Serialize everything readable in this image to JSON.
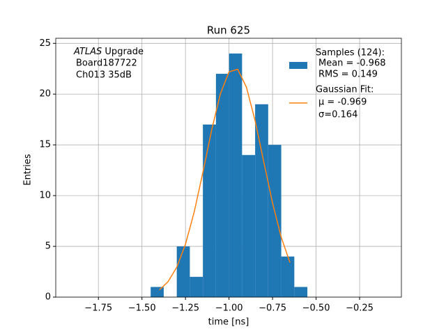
{
  "chart_data": {
    "type": "histogram",
    "title": "Run 625",
    "xlabel": "time [ns]",
    "ylabel": "Entries",
    "annotation": {
      "italic": "ATLAS",
      "text": "Upgrade",
      "lines": [
        "Board187722",
        "Ch013 35dB"
      ]
    },
    "bins": [
      -1.45,
      -1.375,
      -1.3,
      -1.225,
      -1.15,
      -1.075,
      -1.0,
      -0.925,
      -0.85,
      -0.775,
      -0.7,
      -0.625,
      -0.55
    ],
    "values": [
      1,
      0,
      5,
      2,
      17,
      22,
      24,
      14,
      19,
      15,
      4,
      1
    ],
    "color": "#1f77b4",
    "name": "Samples (124):",
    "details": [
      "Mean = -0.968",
      "RMS = 0.149"
    ],
    "fit": {
      "type": "line",
      "name": "Gaussian Fit:",
      "details": [
        "μ = -0.969",
        "σ=0.164"
      ],
      "color": "#ff7f0e",
      "x": [
        -1.4,
        -1.35,
        -1.3,
        -1.25,
        -1.2,
        -1.15,
        -1.1,
        -1.05,
        -1.0,
        -0.95,
        -0.9,
        -0.85,
        -0.8,
        -0.75,
        -0.7,
        -0.65
      ],
      "values": [
        0.71,
        1.52,
        2.95,
        5.21,
        8.38,
        12.29,
        16.43,
        20.0,
        22.19,
        22.45,
        20.68,
        17.37,
        13.29,
        9.27,
        5.89,
        3.41
      ]
    },
    "xlim": [
      -1.995,
      -0.01
    ],
    "ylim": [
      0,
      25.5
    ],
    "xticks": [
      {
        "value": -1.75,
        "label": "−1.75"
      },
      {
        "value": -1.5,
        "label": "−1.50"
      },
      {
        "value": -1.25,
        "label": "−1.25"
      },
      {
        "value": -1.0,
        "label": "−1.00"
      },
      {
        "value": -0.75,
        "label": "−0.75"
      },
      {
        "value": -0.5,
        "label": "−0.50"
      },
      {
        "value": -0.25,
        "label": "−0.25"
      }
    ],
    "yticks": [
      0,
      5,
      10,
      15,
      20,
      25
    ],
    "grid": true,
    "legend": "upper right"
  }
}
